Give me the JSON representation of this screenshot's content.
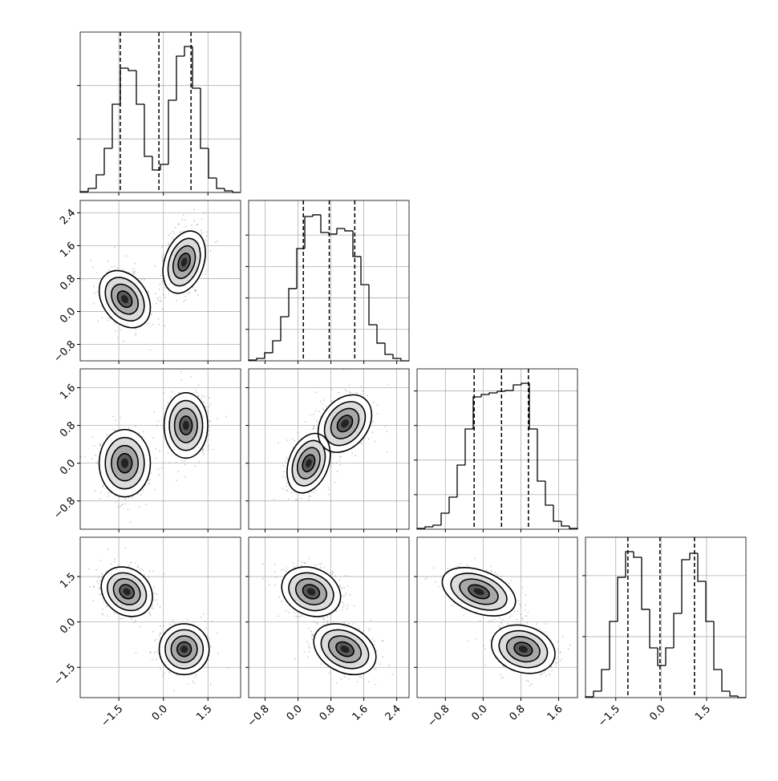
{
  "chart_data": {
    "type": "corner",
    "grid": true,
    "variables": [
      {
        "lim": [
          -2.8,
          2.6
        ],
        "ticks": [
          {
            "value": -1.5,
            "label": "−1.5"
          },
          {
            "value": 0,
            "label": "0.0"
          },
          1.5
        ],
        "bins": [
          -2.8,
          -2.53,
          -2.26,
          -1.99,
          -1.72,
          -1.45,
          -1.18,
          -0.91,
          -0.64,
          -0.37,
          -0.1,
          0.17,
          0.44,
          0.71,
          0.98,
          1.25,
          1.52,
          1.79,
          2.06,
          2.33,
          2.6
        ],
        "counts": [
          15,
          75,
          330,
          825,
          1650,
          2325,
          2280,
          1650,
          675,
          420,
          525,
          1725,
          2550,
          2730,
          1950,
          825,
          270,
          75,
          30,
          0
        ],
        "hist_ylim": [
          0,
          3000
        ],
        "hist_yticks": [
          1000,
          2000
        ],
        "quantiles": [
          -1.45,
          -0.15,
          0.93
        ]
      },
      {
        "lim": [
          -1.2,
          2.7
        ],
        "ticks": [
          {
            "value": -0.8,
            "label": "−0.8"
          },
          {
            "value": 0,
            "label": "0.0"
          },
          0.8,
          1.6,
          2.4
        ],
        "bins": [
          -1.2,
          -1.005,
          -0.81,
          -0.615,
          -0.42,
          -0.225,
          -0.03,
          0.165,
          0.36,
          0.555,
          0.75,
          0.945,
          1.14,
          1.335,
          1.53,
          1.725,
          1.92,
          2.115,
          2.31,
          2.505,
          2.7
        ],
        "counts": [
          13,
          38,
          128,
          319,
          701,
          1148,
          1785,
          2295,
          2321,
          2040,
          2015,
          2104,
          2066,
          1658,
          1211,
          574,
          281,
          102,
          38,
          0
        ],
        "hist_ylim": [
          0,
          2550
        ],
        "hist_yticks": [
          500,
          1000,
          1500,
          2000
        ],
        "quantiles": [
          0.13,
          0.76,
          1.38
        ]
      },
      {
        "lim": [
          -1.4,
          2.0
        ],
        "ticks": [
          {
            "value": -0.8,
            "label": "−0.8"
          },
          {
            "value": 0,
            "label": "0.0"
          },
          0.8,
          1.6
        ],
        "bins": [
          -1.4,
          -1.23,
          -1.06,
          -0.89,
          -0.72,
          -0.55,
          -0.38,
          -0.21,
          -0.04,
          0.13,
          0.3,
          0.47,
          0.64,
          0.81,
          0.98,
          1.15,
          1.32,
          1.49,
          1.66,
          1.83,
          2.0
        ],
        "counts": [
          12,
          35,
          58,
          232,
          464,
          928,
          1450,
          1914,
          1949,
          1972,
          1995,
          2007,
          2088,
          2111,
          1450,
          696,
          348,
          116,
          46,
          12
        ],
        "hist_ylim": [
          0,
          2320
        ],
        "hist_yticks": [
          500,
          1000,
          1500,
          2000
        ],
        "quantiles": [
          -0.19,
          0.39,
          0.96
        ]
      },
      {
        "lim": [
          -2.5,
          2.8
        ],
        "ticks": [
          {
            "value": -1.5,
            "label": "−1.5"
          },
          {
            "value": 0,
            "label": "0.0"
          },
          1.5
        ],
        "bins": [
          -2.5,
          -2.235,
          -1.97,
          -1.705,
          -1.44,
          -1.175,
          -0.91,
          -0.645,
          -0.38,
          -0.115,
          0.15,
          0.415,
          0.68,
          0.945,
          1.21,
          1.475,
          1.74,
          2.005,
          2.27,
          2.535,
          2.8
        ],
        "counts": [
          13,
          105,
          460,
          1249,
          1973,
          2393,
          2301,
          1447,
          815,
          526,
          815,
          1381,
          2262,
          2367,
          1907,
          1249,
          460,
          105,
          26,
          0
        ],
        "hist_ylim": [
          0,
          2630
        ],
        "hist_yticks": [
          1000,
          2000
        ],
        "quantiles": [
          -1.1,
          -0.04,
          1.1
        ]
      }
    ],
    "pairs": [
      {
        "clusters": [
          {
            "cx": -1.3,
            "cy": 0.3,
            "sx": 0.41,
            "sy": 0.33,
            "rho": -0.3
          },
          {
            "cx": 0.7,
            "cy": 1.2,
            "sx": 0.34,
            "sy": 0.36,
            "rho": 0.3
          }
        ]
      },
      {
        "clusters": [
          {
            "cx": -1.3,
            "cy": 0.0,
            "sx": 0.41,
            "sy": 0.34,
            "rho": 0.0
          },
          {
            "cx": 0.76,
            "cy": 0.8,
            "sx": 0.35,
            "sy": 0.33,
            "rho": 0.0
          }
        ]
      },
      {
        "clusters": [
          {
            "cx": 0.26,
            "cy": 0.0,
            "sx": 0.25,
            "sy": 0.3,
            "rho": 0.3
          },
          {
            "cx": 1.14,
            "cy": 0.84,
            "sx": 0.31,
            "sy": 0.29,
            "rho": 0.3
          }
        ]
      },
      {
        "clusters": [
          {
            "cx": -1.23,
            "cy": 1.0,
            "sx": 0.41,
            "sy": 0.39,
            "rho": -0.2
          },
          {
            "cx": 0.7,
            "cy": -0.9,
            "sx": 0.4,
            "sy": 0.4,
            "rho": 0.0
          }
        ]
      },
      {
        "clusters": [
          {
            "cx": 0.32,
            "cy": 1.0,
            "sx": 0.34,
            "sy": 0.39,
            "rho": -0.2
          },
          {
            "cx": 1.14,
            "cy": -0.9,
            "sx": 0.36,
            "sy": 0.4,
            "rho": -0.3
          }
        ]
      },
      {
        "clusters": [
          {
            "cx": -0.09,
            "cy": 1.0,
            "sx": 0.37,
            "sy": 0.38,
            "rho": -0.4
          },
          {
            "cx": 0.85,
            "cy": -0.9,
            "sx": 0.32,
            "sy": 0.38,
            "rho": -0.2
          }
        ]
      }
    ]
  }
}
